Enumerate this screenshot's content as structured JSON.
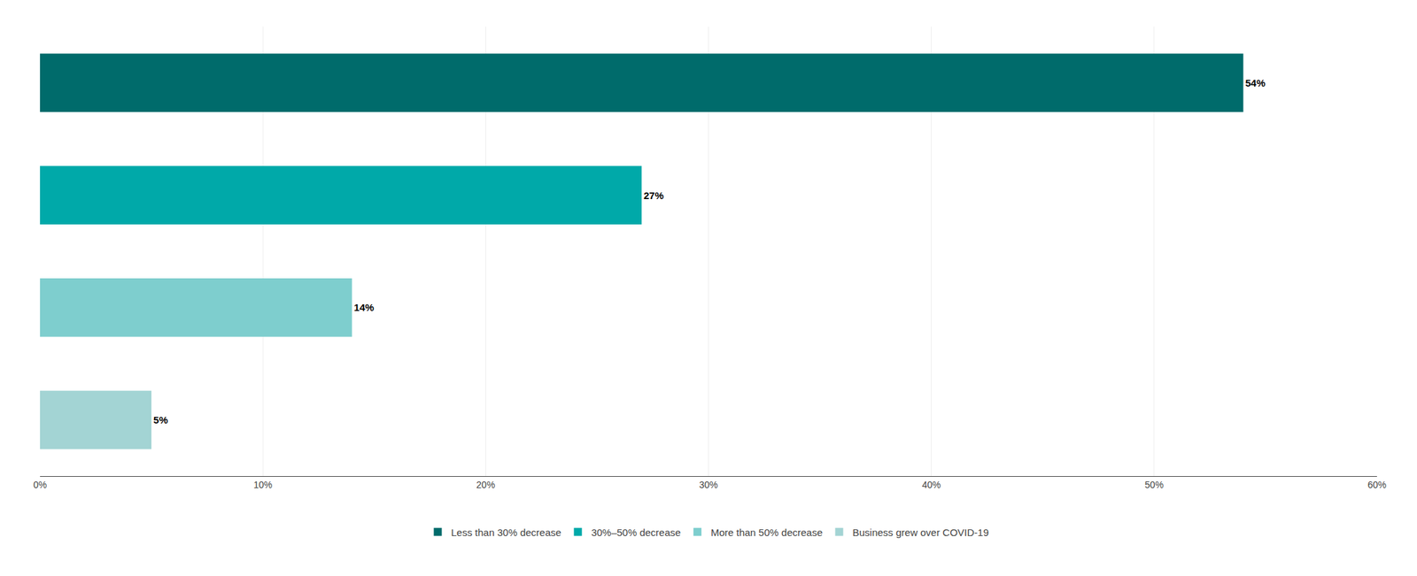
{
  "chart_data": {
    "type": "bar",
    "orientation": "horizontal",
    "categories": [
      "Less than 30% decrease",
      "30%–50% decrease",
      "More than 50% decrease",
      "Business grew over COVID-19"
    ],
    "values": [
      54,
      27,
      14,
      5
    ],
    "value_labels": [
      "54%",
      "27%",
      "14%",
      "5%"
    ],
    "data_labels": true,
    "colors": [
      "#006b6b",
      "#00a9a9",
      "#7ecece",
      "#a3d4d4"
    ],
    "xlim": [
      0,
      60
    ],
    "xticks": [
      {
        "value": 0,
        "label": "0%"
      },
      {
        "value": 10,
        "label": "10%"
      },
      {
        "value": 20,
        "label": "20%"
      },
      {
        "value": 30,
        "label": "30%"
      },
      {
        "value": 40,
        "label": "40%"
      },
      {
        "value": 50,
        "label": "50%"
      },
      {
        "value": 60,
        "label": "60%"
      }
    ],
    "grid": true,
    "tick_labels": "x",
    "legend": "bottom"
  }
}
